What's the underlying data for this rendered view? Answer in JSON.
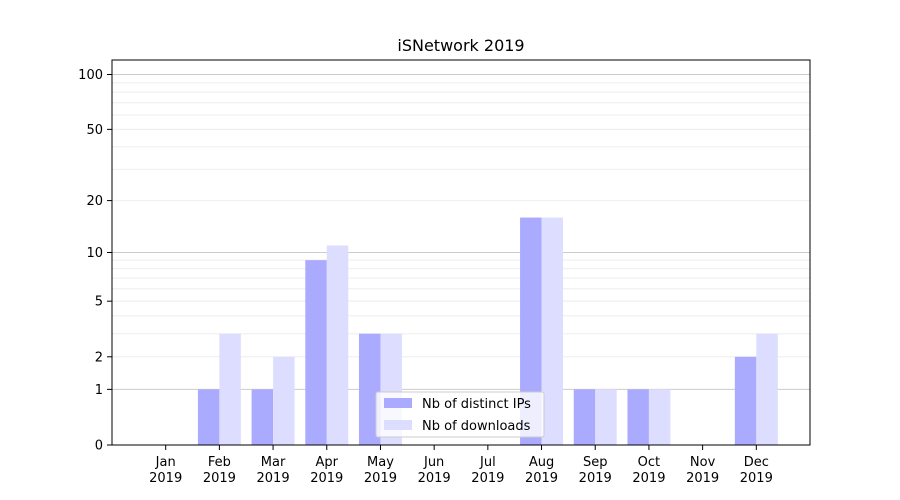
{
  "chart_data": {
    "type": "bar",
    "title": "iSNetwork 2019",
    "categories": [
      [
        "Jan",
        "2019"
      ],
      [
        "Feb",
        "2019"
      ],
      [
        "Mar",
        "2019"
      ],
      [
        "Apr",
        "2019"
      ],
      [
        "May",
        "2019"
      ],
      [
        "Jun",
        "2019"
      ],
      [
        "Jul",
        "2019"
      ],
      [
        "Aug",
        "2019"
      ],
      [
        "Sep",
        "2019"
      ],
      [
        "Oct",
        "2019"
      ],
      [
        "Nov",
        "2019"
      ],
      [
        "Dec",
        "2019"
      ]
    ],
    "series": [
      {
        "name": "Nb of distinct IPs",
        "color": "#aaaaff",
        "values": [
          0,
          1,
          1,
          9,
          3,
          0,
          0,
          16,
          1,
          1,
          0,
          2
        ]
      },
      {
        "name": "Nb of downloads",
        "color": "#ddddff",
        "values": [
          0,
          3,
          2,
          11,
          3,
          0,
          0,
          16,
          1,
          1,
          0,
          3
        ]
      }
    ],
    "y_scale": "log(1+y)",
    "y_ticks": [
      0,
      1,
      2,
      5,
      10,
      20,
      50,
      100
    ],
    "ylim": [
      0,
      120
    ],
    "grid": true,
    "legend_position": "bottom-center"
  }
}
